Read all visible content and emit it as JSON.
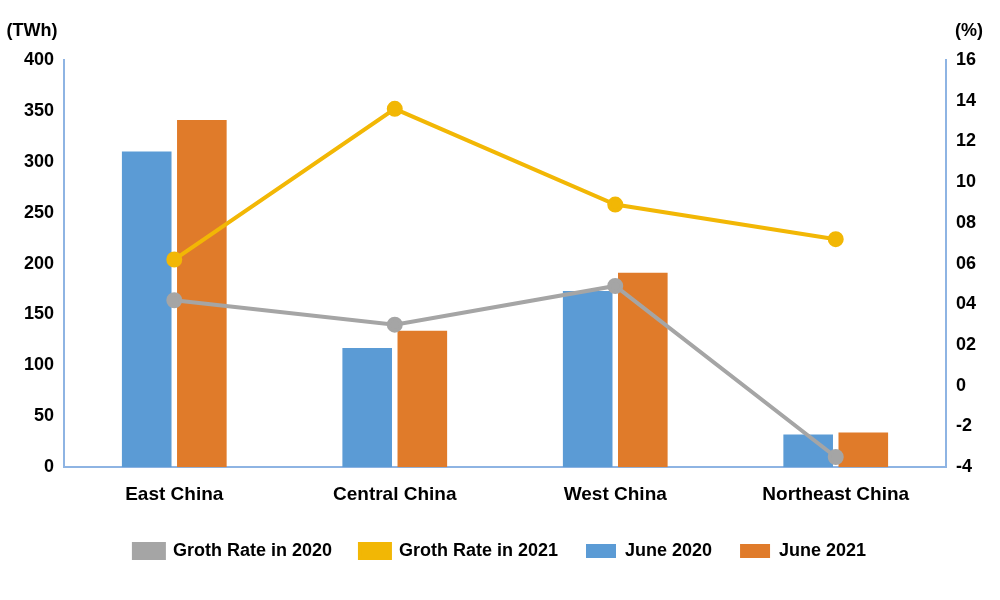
{
  "chart_data": {
    "type": "bar",
    "categories": [
      "East China",
      "Central China",
      "West China",
      "Northeast China"
    ],
    "ylabel": "(TWh)",
    "y2label": "(%)",
    "ylim": [
      0,
      400
    ],
    "yticks": [
      0,
      50,
      100,
      150,
      200,
      250,
      300,
      350,
      400
    ],
    "y2lim": [
      -4,
      16
    ],
    "y2ticks": [
      -4,
      -2,
      0,
      {
        "value": 2,
        "label": "02"
      },
      {
        "value": 4,
        "label": "04"
      },
      {
        "value": 6,
        "label": "06"
      },
      {
        "value": 8,
        "label": "08"
      },
      10,
      12,
      14,
      16
    ],
    "grid": false,
    "legend": "bottom",
    "series": [
      {
        "name": "June 2020",
        "type": "bar",
        "color": "#5b9bd5",
        "values": [
          310,
          117,
          173,
          32
        ]
      },
      {
        "name": "June 2021",
        "type": "bar",
        "color": "#e07b2a",
        "values": [
          341,
          134,
          191,
          34
        ]
      },
      {
        "name": "Groth Rate in 2020",
        "type": "line",
        "axis": "y2",
        "color": "#a5a5a5",
        "marker": "circle",
        "values": [
          4.2,
          3.0,
          4.9,
          -3.5
        ]
      },
      {
        "name": "Groth Rate in 2021",
        "type": "line",
        "axis": "y2",
        "color": "#f2b705",
        "marker": "circle",
        "values": [
          6.2,
          13.6,
          8.9,
          7.2
        ]
      }
    ]
  }
}
